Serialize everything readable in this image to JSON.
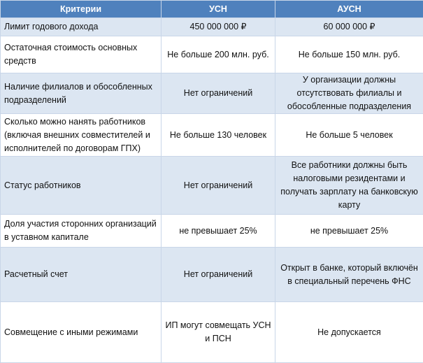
{
  "table": {
    "header": [
      "Критерии",
      "УСН",
      "АУСН"
    ],
    "rows": [
      [
        "Лимит годового дохода",
        "450 000 000 ₽",
        "60 000 000 ₽"
      ],
      [
        "Остаточная стоимость основных средств",
        "Не больше 200 млн. руб.",
        "Не больше 150 млн. руб."
      ],
      [
        "Наличие филиалов и обособленных подразделений",
        "Нет ограничений",
        "У организации должны отсутствовать филиалы и обособленные подразделения"
      ],
      [
        "Сколько можно нанять работников (включая внешних совместителей и исполнителей по договорам ГПХ)",
        "Не больше 130 человек",
        "Не больше 5 человек"
      ],
      [
        "Статус работников",
        "Нет ограничений",
        "Все работники должны быть налоговыми резидентами и получать зарплату на банковскую карту"
      ],
      [
        "Доля участия сторонних организаций в уставном капитале",
        "не превышает 25%",
        "не превышает 25%"
      ],
      [
        "Расчетный счет",
        "Нет ограничений",
        "Открыт в банке, который включён в специальный перечень ФНС"
      ],
      [
        "Совмещение с иными режимами",
        "ИП могут совмещать УСН и ПСН",
        "Не допускается"
      ]
    ]
  }
}
